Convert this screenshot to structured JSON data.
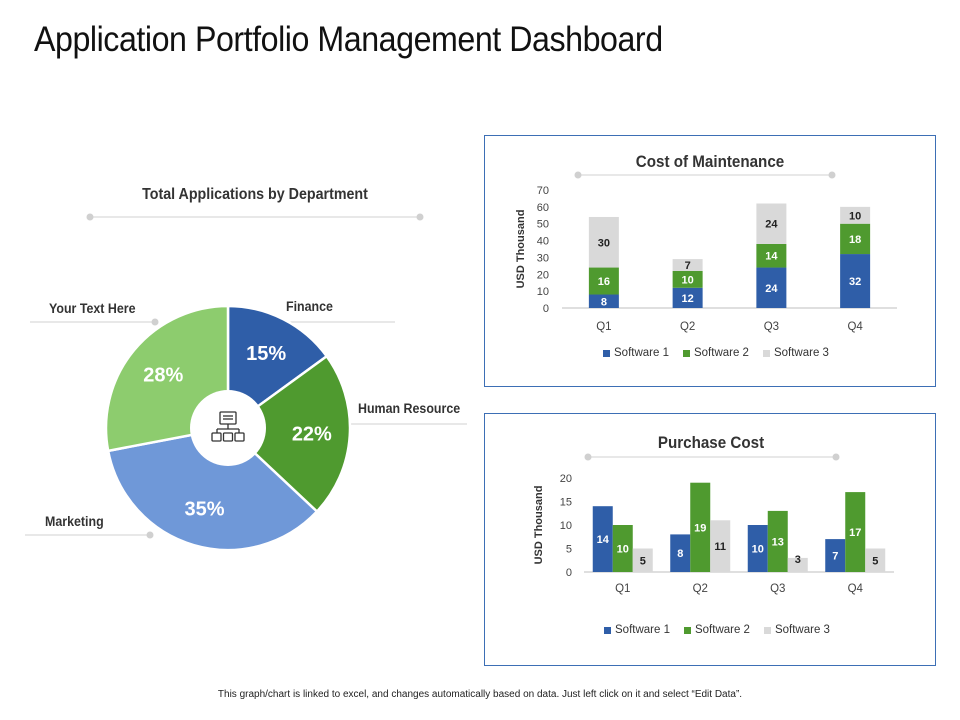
{
  "page": {
    "title": "Application Portfolio Management Dashboard",
    "footer": "This graph/chart is linked to excel, and changes automatically based on data. Just left click on it and select “Edit Data”."
  },
  "colors": {
    "software1": "#2f5ea8",
    "software2": "#4f9a2f",
    "software3": "#d9d9d9",
    "marketing": "#6f98d8",
    "text_here": "#8dcc6e",
    "card_border": "#3d6fb5"
  },
  "icons": {
    "center": "org-chart-icon"
  },
  "chart_data": [
    {
      "type": "pie",
      "title": "Total Applications by Department",
      "slices": [
        {
          "label": "Finance",
          "value": 15,
          "display": "15%"
        },
        {
          "label": "Human Resource",
          "value": 22,
          "display": "22%"
        },
        {
          "label": "Marketing",
          "value": 35,
          "display": "35%"
        },
        {
          "label": "Your Text Here",
          "value": 28,
          "display": "28%"
        }
      ]
    },
    {
      "type": "bar",
      "stacked": true,
      "title": "Cost of Maintenance",
      "ylabel": "USD Thousand",
      "ylim": [
        0,
        70
      ],
      "yticks": [
        0,
        10,
        20,
        30,
        40,
        50,
        60,
        70
      ],
      "categories": [
        "Q1",
        "Q2",
        "Q3",
        "Q4"
      ],
      "series": [
        {
          "name": "Software 1",
          "values": [
            8,
            12,
            24,
            32
          ]
        },
        {
          "name": "Software 2",
          "values": [
            16,
            10,
            14,
            18
          ]
        },
        {
          "name": "Software 3",
          "values": [
            30,
            7,
            24,
            10
          ]
        }
      ]
    },
    {
      "type": "bar",
      "stacked": false,
      "title": "Purchase Cost",
      "ylabel": "USD Thousand",
      "ylim": [
        0,
        20
      ],
      "yticks": [
        0,
        5,
        10,
        15,
        20
      ],
      "categories": [
        "Q1",
        "Q2",
        "Q3",
        "Q4"
      ],
      "series": [
        {
          "name": "Software 1",
          "values": [
            14,
            8,
            10,
            7
          ]
        },
        {
          "name": "Software 2",
          "values": [
            10,
            19,
            13,
            17
          ]
        },
        {
          "name": "Software 3",
          "values": [
            5,
            11,
            3,
            5
          ]
        }
      ]
    }
  ]
}
